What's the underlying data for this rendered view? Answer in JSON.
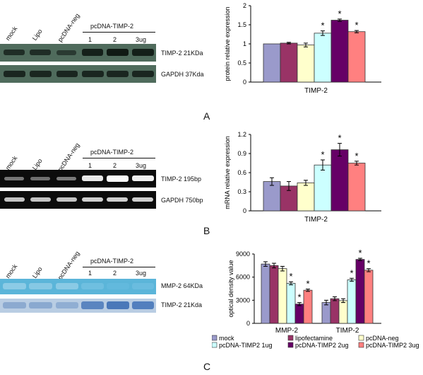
{
  "panelA": {
    "letter": "A",
    "lanes": [
      "mock",
      "Lipo",
      "pcDNA-neg"
    ],
    "group_label": "pcDNA-TIMP-2",
    "doses": [
      "1",
      "2",
      "3ug"
    ],
    "blot1_label": "TIMP-2  21KDa",
    "blot2_label": "GAPDH  37Kda"
  },
  "panelB": {
    "letter": "B",
    "lanes": [
      "mock",
      "Lipo",
      "pcDNA-neg"
    ],
    "group_label": "pcDNA-TIMP-2",
    "doses": [
      "1",
      "2",
      "3ug"
    ],
    "blot1_label": "TIMP-2  195bp",
    "blot2_label": "GAPDH  750bp"
  },
  "panelC": {
    "letter": "C",
    "lanes": [
      "mock",
      "Lipo",
      "pcDNA-neg"
    ],
    "group_label": "pcDNA-TIMP-2",
    "doses": [
      "1",
      "2",
      "3ug"
    ],
    "blot1_label": "MMP-2  64KDa",
    "blot2_label": "TIMP-2  21Kda"
  },
  "colors": {
    "mock": "#9a9acb",
    "lipofectamine": "#993366",
    "pcDNA_neg": "#ffffcc",
    "ug1": "#ccffff",
    "ug2": "#660066",
    "ug3": "#ff8080"
  },
  "chart_data": [
    {
      "type": "bar",
      "ylabel": "protein relative expression",
      "xlabel": "TIMP-2",
      "ylim": [
        0,
        2
      ],
      "yticks": [
        "0",
        "0.5",
        "1",
        "1.5",
        "2"
      ],
      "values": [
        1.0,
        1.02,
        0.97,
        1.28,
        1.62,
        1.32
      ],
      "errors": [
        0,
        0.02,
        0.05,
        0.06,
        0.03,
        0.03
      ],
      "significant": [
        false,
        false,
        false,
        true,
        true,
        true
      ],
      "star": "*"
    },
    {
      "type": "bar",
      "ylabel": "mRNA relative expression",
      "xlabel": "TIMP-2",
      "ylim": [
        0,
        1.2
      ],
      "yticks": [
        "0",
        "0.3",
        "0.6",
        "0.9",
        "1.2"
      ],
      "values": [
        0.46,
        0.39,
        0.44,
        0.72,
        0.96,
        0.75
      ],
      "errors": [
        0.06,
        0.07,
        0.04,
        0.08,
        0.1,
        0.03
      ],
      "significant": [
        false,
        false,
        false,
        true,
        true,
        true
      ],
      "star": "*"
    },
    {
      "type": "bar",
      "ylabel": "optical density value",
      "categories": [
        "MMP-2",
        "TIMP-2"
      ],
      "ylim": [
        0,
        9000
      ],
      "yticks": [
        "0",
        "3000",
        "6000",
        "9000"
      ],
      "series": [
        {
          "name": "mock",
          "values": [
            7700,
            2700
          ],
          "errors": [
            300,
            300
          ],
          "significant": [
            false,
            false
          ]
        },
        {
          "name": "lipofectamine",
          "values": [
            7500,
            3200
          ],
          "errors": [
            300,
            250
          ],
          "significant": [
            false,
            false
          ]
        },
        {
          "name": "pcDNA-neg",
          "values": [
            7100,
            2950
          ],
          "errors": [
            300,
            250
          ],
          "significant": [
            false,
            false
          ]
        },
        {
          "name": "pcDNA-TIMP2 1ug",
          "values": [
            5200,
            5650
          ],
          "errors": [
            200,
            200
          ],
          "significant": [
            true,
            true
          ]
        },
        {
          "name": "pcDNA-TIMP2 2ug",
          "values": [
            2500,
            8300
          ],
          "errors": [
            200,
            150
          ],
          "significant": [
            true,
            true
          ]
        },
        {
          "name": "pcDNA-TIMP2 3ug",
          "values": [
            4300,
            6900
          ],
          "errors": [
            150,
            200
          ],
          "significant": [
            true,
            true
          ]
        }
      ],
      "star": "*"
    }
  ]
}
